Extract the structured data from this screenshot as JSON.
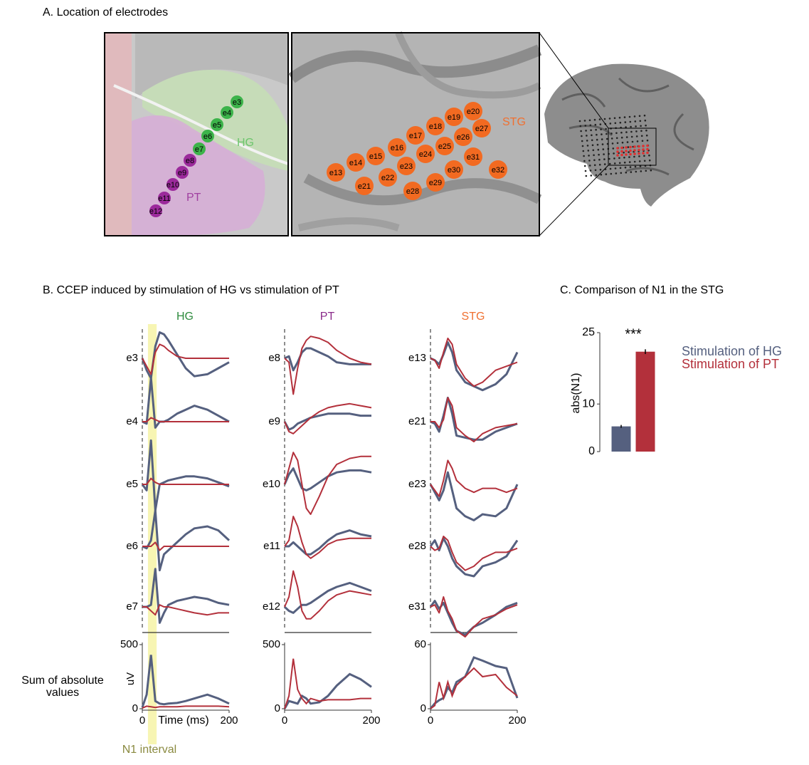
{
  "panel_a": {
    "title": "A. Location of electrodes",
    "hg_label": "HG",
    "pt_label": "PT",
    "stg_label": "STG",
    "hg_electrodes": [
      "e3",
      "e4",
      "e5",
      "e6",
      "e7"
    ],
    "pt_electrodes": [
      "e8",
      "e9",
      "e10",
      "e11",
      "e12"
    ],
    "stg_electrodes": [
      "e13",
      "e14",
      "e15",
      "e16",
      "e17",
      "e18",
      "e19",
      "e20",
      "e21",
      "e22",
      "e23",
      "e24",
      "e25",
      "e26",
      "e27",
      "e28",
      "e29",
      "e30",
      "e31",
      "e32"
    ]
  },
  "panel_b": {
    "title": "B. CCEP induced by stimulation of HG vs stimulation of PT",
    "x": [
      0,
      10,
      20,
      30,
      40,
      50,
      60,
      80,
      100,
      120,
      150,
      175,
      200
    ],
    "xlim": [
      0,
      200
    ],
    "xticks": [
      0,
      200
    ],
    "xlabel": "Time (ms)",
    "ylabel": "uV",
    "sum_label": [
      "Sum of absolute",
      "values"
    ],
    "n1_label": "N1 interval",
    "n1_interval": [
      13,
      33
    ],
    "colors": {
      "hg": "#55607f",
      "pt": "#b3303b"
    },
    "columns": [
      {
        "title": "HG",
        "color": "#2e8b3e",
        "rows": [
          {
            "label": "e3",
            "hg": [
              0,
              -0.6,
              -1.0,
              0.6,
              1.3,
              1.2,
              0.9,
              0.2,
              -0.5,
              -0.9,
              -0.8,
              -0.5,
              -0.2
            ],
            "pt": [
              0,
              -0.4,
              -0.8,
              0.3,
              0.7,
              0.6,
              0.4,
              0.1,
              0,
              0,
              0,
              0,
              0
            ]
          },
          {
            "label": "e4",
            "hg": [
              0,
              -0.1,
              2.2,
              -0.3,
              0,
              0,
              0.1,
              0.4,
              0.6,
              0.8,
              0.6,
              0.3,
              0
            ],
            "pt": [
              0,
              0,
              0.2,
              0.1,
              0,
              0,
              0,
              0,
              0,
              0,
              0,
              0,
              0
            ]
          },
          {
            "label": "e5",
            "hg": [
              0,
              -0.3,
              2.2,
              -1.3,
              0,
              0.1,
              0.2,
              0.3,
              0.4,
              0.4,
              0.3,
              0.1,
              -0.1
            ],
            "pt": [
              0,
              0,
              0.3,
              0.1,
              0,
              0,
              0,
              0,
              0,
              0,
              0,
              0,
              0
            ]
          },
          {
            "label": "e6",
            "hg": [
              0,
              -0.1,
              0.3,
              1.8,
              -1.2,
              -0.4,
              -0.2,
              0.2,
              0.6,
              0.9,
              1.0,
              0.8,
              0.3
            ],
            "pt": [
              0,
              0,
              0,
              0.2,
              -0.2,
              0,
              0,
              0,
              0,
              0,
              0,
              0,
              0
            ]
          },
          {
            "label": "e7",
            "hg": [
              0,
              0,
              0.1,
              1.9,
              -0.8,
              -0.3,
              0.1,
              0.3,
              0.4,
              0.5,
              0.4,
              0.2,
              0.1
            ],
            "pt": [
              0,
              0,
              -0.2,
              -0.4,
              0.1,
              0,
              0,
              -0.1,
              -0.2,
              -0.3,
              -0.4,
              -0.3,
              -0.3
            ]
          }
        ],
        "sum": {
          "ylim": [
            0,
            500
          ],
          "yticks": [
            0,
            500
          ],
          "hg": [
            10,
            110,
            420,
            60,
            40,
            35,
            40,
            45,
            60,
            80,
            110,
            80,
            40
          ],
          "pt": [
            5,
            20,
            15,
            10,
            15,
            15,
            15,
            15,
            20,
            20,
            20,
            20,
            15
          ]
        }
      },
      {
        "title": "PT",
        "color": "#8a2a8a",
        "rows": [
          {
            "label": "e8",
            "hg": [
              0,
              0.1,
              -0.6,
              -0.2,
              0.3,
              0.5,
              0.5,
              0.3,
              0.1,
              -0.2,
              -0.3,
              -0.3,
              -0.3
            ],
            "pt": [
              0,
              -0.2,
              -1.8,
              -0.5,
              0.5,
              0.9,
              1.1,
              1.0,
              0.8,
              0.4,
              0,
              -0.2,
              -0.3
            ]
          },
          {
            "label": "e9",
            "hg": [
              0,
              -0.4,
              -0.3,
              -0.1,
              0,
              0.1,
              0.2,
              0.3,
              0.4,
              0.4,
              0.4,
              0.3,
              0.3
            ],
            "pt": [
              0,
              -0.5,
              -0.6,
              -0.4,
              -0.2,
              0,
              0.2,
              0.5,
              0.7,
              0.8,
              0.9,
              0.8,
              0.7
            ]
          },
          {
            "label": "e10",
            "hg": [
              0,
              0.5,
              0.8,
              0.3,
              -0.2,
              -0.3,
              -0.2,
              0.1,
              0.4,
              0.6,
              0.7,
              0.7,
              0.6
            ],
            "pt": [
              0,
              0.8,
              1.6,
              1.2,
              0,
              -1.2,
              -1.5,
              -0.6,
              0.4,
              1.0,
              1.3,
              1.4,
              1.4
            ]
          },
          {
            "label": "e11",
            "hg": [
              0,
              0,
              0.2,
              0,
              -0.2,
              -0.4,
              -0.4,
              -0.1,
              0.3,
              0.6,
              0.8,
              0.6,
              0.5
            ],
            "pt": [
              0,
              0.3,
              1.5,
              1.0,
              0.2,
              -0.4,
              -0.6,
              -0.3,
              0.1,
              0.3,
              0.4,
              0.4,
              0.4
            ]
          },
          {
            "label": "e12",
            "hg": [
              0,
              -0.2,
              -0.3,
              -0.1,
              0.1,
              0.1,
              0.2,
              0.5,
              0.8,
              1.0,
              1.2,
              1.0,
              0.8
            ],
            "pt": [
              0,
              0.5,
              1.8,
              1.0,
              -0.2,
              -0.6,
              -0.6,
              -0.2,
              0.3,
              0.6,
              0.8,
              0.7,
              0.6
            ]
          }
        ],
        "sum": {
          "ylim": [
            0,
            500
          ],
          "yticks": [
            0,
            500
          ],
          "hg": [
            0,
            60,
            50,
            40,
            100,
            80,
            40,
            50,
            100,
            180,
            270,
            230,
            170
          ],
          "pt": [
            0,
            100,
            390,
            150,
            80,
            40,
            80,
            60,
            70,
            70,
            70,
            80,
            80
          ]
        }
      },
      {
        "title": "STG",
        "color": "#f07030",
        "rows": [
          {
            "label": "e13",
            "hg": [
              0,
              -0.1,
              -0.3,
              0.2,
              0.8,
              0.3,
              -0.6,
              -1.2,
              -1.4,
              -1.6,
              -1.3,
              -0.8,
              0.3
            ],
            "pt": [
              0,
              -0.1,
              -0.5,
              0.3,
              1.0,
              0.7,
              -0.3,
              -1.0,
              -1.4,
              -1.2,
              -0.6,
              -0.4,
              -0.2
            ]
          },
          {
            "label": "e21",
            "hg": [
              0,
              -0.1,
              -0.5,
              0.3,
              1.2,
              0.4,
              -0.7,
              -0.8,
              -0.9,
              -0.9,
              -0.5,
              -0.3,
              -0.1
            ],
            "pt": [
              0,
              0,
              -0.3,
              0.1,
              1.2,
              0.8,
              -0.3,
              -0.7,
              -1.0,
              -0.6,
              -0.3,
              -0.2,
              -0.1
            ]
          },
          {
            "label": "e23",
            "hg": [
              0,
              -0.4,
              -0.8,
              -0.3,
              0.6,
              -0.3,
              -1.2,
              -1.6,
              -1.8,
              -1.5,
              -1.6,
              -1.2,
              0
            ],
            "pt": [
              0,
              -0.3,
              -0.6,
              0.2,
              1.2,
              0.8,
              0.2,
              -0.2,
              -0.4,
              -0.2,
              -0.2,
              -0.4,
              -0.2
            ]
          },
          {
            "label": "e28",
            "hg": [
              0,
              0.3,
              -0.2,
              0.4,
              0,
              -0.6,
              -1.0,
              -1.4,
              -1.5,
              -1.0,
              -0.8,
              -0.5,
              0.3
            ],
            "pt": [
              0,
              -0.2,
              -0.1,
              0.5,
              0.3,
              -0.3,
              -0.8,
              -1.2,
              -1.0,
              -0.6,
              -0.3,
              -0.3,
              -0.1
            ]
          },
          {
            "label": "e31",
            "hg": [
              0,
              0.3,
              -0.1,
              0.2,
              -0.3,
              -0.8,
              -1.2,
              -1.4,
              -1.0,
              -0.8,
              -0.4,
              0,
              0.2
            ],
            "pt": [
              0,
              0.1,
              -0.3,
              0.5,
              -0.2,
              -0.6,
              -1.2,
              -1.5,
              -1.0,
              -0.6,
              -0.4,
              -0.1,
              0.1
            ]
          }
        ],
        "sum": {
          "ylim": [
            0,
            60
          ],
          "yticks": [
            0,
            60
          ],
          "hg": [
            0,
            5,
            8,
            10,
            20,
            15,
            25,
            30,
            48,
            45,
            40,
            38,
            10
          ],
          "pt": [
            0,
            3,
            25,
            10,
            25,
            12,
            22,
            30,
            38,
            30,
            32,
            20,
            12
          ]
        }
      }
    ]
  },
  "chart_data": {
    "type": "bar",
    "title": "C. Comparison of N1 in the STG",
    "ylabel": "abs(N1)",
    "categories": [
      null,
      null
    ],
    "values": [
      5.3,
      21
    ],
    "errors": [
      0.3,
      0.5
    ],
    "colors": [
      "#55607f",
      "#b3303b"
    ],
    "ylim": [
      0,
      25
    ],
    "yticks": [
      0,
      10,
      25
    ],
    "annotation": "***",
    "legend": [
      "Stimulation of HG",
      "Stimulation of PT"
    ]
  }
}
